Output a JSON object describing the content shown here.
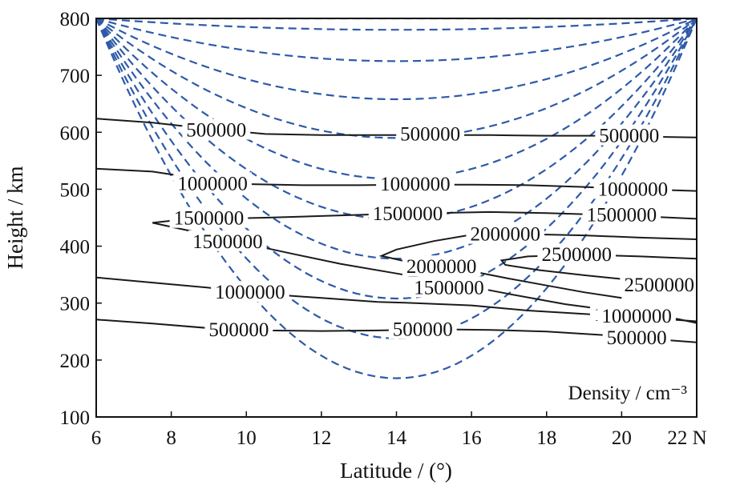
{
  "chart_data": {
    "type": "line",
    "xlabel": "Latitude / (°)",
    "ylabel": "Height / km",
    "xlim": [
      6,
      22
    ],
    "ylim": [
      100,
      800
    ],
    "x_ticks": [
      6,
      8,
      10,
      12,
      14,
      16,
      18,
      20,
      22
    ],
    "x_tick_labels": [
      "6",
      "8",
      "10",
      "12",
      "14",
      "16",
      "18",
      "20",
      "22 N"
    ],
    "y_ticks": [
      100,
      200,
      300,
      400,
      500,
      600,
      700,
      800
    ],
    "y_tick_labels": [
      "100",
      "200",
      "300",
      "400",
      "500",
      "600",
      "700",
      "800"
    ],
    "annotation": "Density / cm⁻³",
    "colors": {
      "contour": "#1a1a1a",
      "field_lines": "#2e5aa8"
    },
    "contours": [
      {
        "label": "500000",
        "points": [
          [
            6.0,
            624
          ],
          [
            7.5,
            617
          ],
          [
            9.0,
            606
          ],
          [
            10.5,
            597
          ],
          [
            12.0,
            595
          ],
          [
            13.5,
            595
          ],
          [
            15.0,
            595
          ],
          [
            16.5,
            595
          ],
          [
            18.0,
            594
          ],
          [
            19.5,
            594
          ],
          [
            21.0,
            592
          ],
          [
            22.0,
            591
          ]
        ],
        "label_positions": [
          [
            9.2,
            604
          ],
          [
            14.9,
            597
          ],
          [
            20.2,
            594
          ]
        ]
      },
      {
        "label": "1000000",
        "points": [
          [
            6.0,
            536
          ],
          [
            7.5,
            531
          ],
          [
            8.5,
            521
          ],
          [
            10.0,
            509
          ],
          [
            11.5,
            507
          ],
          [
            13.0,
            507
          ],
          [
            14.5,
            508
          ],
          [
            16.0,
            508
          ],
          [
            17.5,
            507
          ],
          [
            19.0,
            504
          ],
          [
            20.5,
            500
          ],
          [
            22.0,
            497
          ]
        ],
        "label_positions": [
          [
            9.1,
            510
          ],
          [
            14.5,
            509
          ],
          [
            20.3,
            500
          ]
        ]
      },
      {
        "label": "1500000 (upper)",
        "points": [
          [
            7.5,
            441
          ],
          [
            8.2,
            446
          ],
          [
            9.2,
            448
          ],
          [
            10.5,
            450
          ],
          [
            12.0,
            453
          ],
          [
            13.5,
            456
          ],
          [
            15.0,
            458
          ],
          [
            16.5,
            460
          ],
          [
            18.0,
            458
          ],
          [
            19.5,
            455
          ],
          [
            21.0,
            451
          ],
          [
            22.0,
            448
          ]
        ],
        "label_positions": [
          [
            9.0,
            449
          ],
          [
            14.3,
            457
          ],
          [
            20.0,
            455
          ]
        ]
      },
      {
        "label": "1500000 (lower)",
        "points": [
          [
            7.5,
            441
          ],
          [
            8.2,
            431
          ],
          [
            9.0,
            420
          ],
          [
            10.0,
            404
          ],
          [
            11.2,
            387
          ],
          [
            12.5,
            369
          ],
          [
            14.0,
            352
          ],
          [
            15.5,
            335
          ],
          [
            17.0,
            316
          ],
          [
            18.5,
            298
          ],
          [
            20.0,
            285
          ],
          [
            21.5,
            272
          ],
          [
            22.0,
            265
          ]
        ],
        "label_positions": [
          [
            9.5,
            408
          ],
          [
            15.4,
            327
          ],
          [
            20.2,
            280
          ]
        ]
      },
      {
        "label": "2000000",
        "points": [
          [
            22.0,
            412
          ],
          [
            20.5,
            415
          ],
          [
            19.0,
            419
          ],
          [
            17.5,
            421
          ],
          [
            16.0,
            420
          ],
          [
            15.0,
            409
          ],
          [
            14.0,
            394
          ],
          [
            13.6,
            383
          ],
          [
            14.2,
            374
          ],
          [
            15.0,
            366
          ],
          [
            16.0,
            356
          ],
          [
            17.0,
            343
          ],
          [
            18.0,
            331
          ],
          [
            19.0,
            319
          ],
          [
            20.0,
            309
          ]
        ],
        "label_positions": [
          [
            16.9,
            421
          ],
          [
            15.2,
            364
          ]
        ]
      },
      {
        "label": "2500000",
        "points": [
          [
            22.0,
            378
          ],
          [
            20.5,
            382
          ],
          [
            19.0,
            385
          ],
          [
            17.5,
            382
          ],
          [
            16.8,
            375
          ],
          [
            16.9,
            367
          ],
          [
            17.8,
            358
          ],
          [
            19.0,
            349
          ],
          [
            20.5,
            339
          ],
          [
            22.0,
            325
          ]
        ],
        "label_positions": [
          [
            18.8,
            385
          ],
          [
            21.0,
            332
          ]
        ]
      },
      {
        "label": "1000000 (lower)",
        "points": [
          [
            6.0,
            345
          ],
          [
            7.5,
            336
          ],
          [
            9.0,
            327
          ],
          [
            10.5,
            316
          ],
          [
            12.0,
            309
          ],
          [
            13.5,
            302
          ],
          [
            14.5,
            300
          ],
          [
            16.0,
            296
          ],
          [
            17.5,
            287
          ],
          [
            19.0,
            281
          ],
          [
            20.5,
            275
          ],
          [
            22.0,
            268
          ]
        ],
        "label_positions": [
          [
            10.1,
            319
          ],
          [
            20.4,
            277
          ]
        ]
      },
      {
        "label": "500000 (lower)",
        "points": [
          [
            6.0,
            271
          ],
          [
            7.5,
            264
          ],
          [
            9.0,
            256
          ],
          [
            10.5,
            252
          ],
          [
            12.0,
            251
          ],
          [
            13.5,
            252
          ],
          [
            15.0,
            254
          ],
          [
            16.5,
            253
          ],
          [
            18.0,
            250
          ],
          [
            19.5,
            244
          ],
          [
            21.0,
            236
          ],
          [
            22.0,
            231
          ]
        ],
        "label_positions": [
          [
            9.8,
            253
          ],
          [
            14.7,
            254
          ],
          [
            20.4,
            239
          ]
        ]
      }
    ],
    "field_lines": [
      {
        "apex_height": 800,
        "apex_lat": 14.0
      },
      {
        "apex_height": 780,
        "apex_lat": 14.0
      },
      {
        "apex_height": 725,
        "apex_lat": 14.0
      },
      {
        "apex_height": 658,
        "apex_lat": 14.0
      },
      {
        "apex_height": 590,
        "apex_lat": 14.0
      },
      {
        "apex_height": 518,
        "apex_lat": 14.0
      },
      {
        "apex_height": 447,
        "apex_lat": 14.0
      },
      {
        "apex_height": 378,
        "apex_lat": 14.0
      },
      {
        "apex_height": 308,
        "apex_lat": 14.0
      },
      {
        "apex_height": 238,
        "apex_lat": 14.0
      },
      {
        "apex_height": 168,
        "apex_lat": 14.0
      }
    ],
    "field_line_endpoints": {
      "left": [
        6.0,
        800
      ],
      "right": [
        22.0,
        800
      ]
    }
  }
}
